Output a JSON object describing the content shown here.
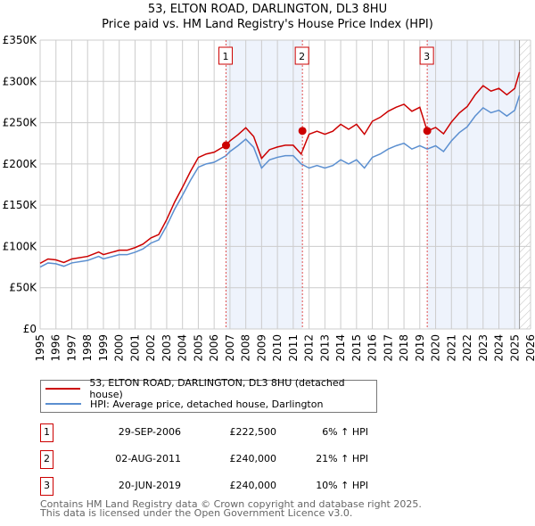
{
  "title": "53, ELTON ROAD, DARLINGTON, DL3 8HU",
  "subtitle": "Price paid vs. HM Land Registry's House Price Index (HPI)",
  "chart_data": {
    "type": "line",
    "ylim": [
      0,
      350000
    ],
    "xlim": [
      1995,
      2026
    ],
    "yticks": [
      {
        "v": 0,
        "l": "£0"
      },
      {
        "v": 50000,
        "l": "£50K"
      },
      {
        "v": 100000,
        "l": "£100K"
      },
      {
        "v": 150000,
        "l": "£150K"
      },
      {
        "v": 200000,
        "l": "£200K"
      },
      {
        "v": 250000,
        "l": "£250K"
      },
      {
        "v": 300000,
        "l": "£300K"
      },
      {
        "v": 350000,
        "l": "£350K"
      }
    ],
    "xticks": [
      "1995",
      "1996",
      "1997",
      "1998",
      "1999",
      "2000",
      "2001",
      "2002",
      "2003",
      "2004",
      "2005",
      "2006",
      "2007",
      "2008",
      "2009",
      "2010",
      "2011",
      "2012",
      "2013",
      "2014",
      "2015",
      "2016",
      "2017",
      "2018",
      "2019",
      "2020",
      "2021",
      "2022",
      "2023",
      "2024",
      "2025",
      "2026"
    ],
    "hpi_series": {
      "name": "HPI: Average price, detached house, Darlington",
      "color": "#5b8fd0",
      "x": [
        1995,
        1995.5,
        1996,
        1996.5,
        1997,
        1998,
        1998.7,
        1999,
        2000,
        2000.5,
        2001,
        2001.5,
        2002,
        2002.5,
        2003,
        2003.5,
        2004,
        2004.5,
        2005,
        2005.5,
        2006,
        2006.75,
        2007,
        2007.5,
        2008,
        2008.5,
        2009,
        2009.5,
        2010,
        2010.5,
        2011,
        2011.5,
        2012,
        2012.5,
        2013,
        2013.5,
        2014,
        2014.5,
        2015,
        2015.5,
        2016,
        2016.5,
        2017,
        2017.5,
        2018,
        2018.5,
        2019,
        2019.47,
        2020,
        2020.5,
        2021,
        2021.5,
        2022,
        2022.5,
        2023,
        2023.5,
        2024,
        2024.5,
        2025,
        2025.3
      ],
      "y": [
        75,
        80,
        79,
        76,
        80,
        83,
        88,
        85,
        90,
        90,
        93,
        97,
        104,
        108,
        125,
        145,
        162,
        180,
        196,
        200,
        202,
        210,
        215,
        222,
        230,
        220,
        195,
        205,
        208,
        210,
        210,
        200,
        195,
        198,
        195,
        198,
        205,
        200,
        205,
        195,
        208,
        212,
        218,
        222,
        225,
        218,
        222,
        218,
        222,
        215,
        228,
        238,
        245,
        258,
        268,
        262,
        265,
        258,
        265,
        283
      ]
    },
    "price_series": {
      "name": "53, ELTON ROAD, DARLINGTON, DL3 8HU (detached house)",
      "color": "#cc0000"
    },
    "sales": [
      {
        "n": "1",
        "date": "29-SEP-2006",
        "x": 2006.75,
        "price": "£222,500",
        "value": 222500,
        "hpi": "6% ↑ HPI",
        "ratio": 1.06
      },
      {
        "n": "2",
        "date": "02-AUG-2011",
        "x": 2011.58,
        "price": "£240,000",
        "value": 240000,
        "hpi": "21% ↑ HPI",
        "ratio": 1.21
      },
      {
        "n": "3",
        "date": "20-JUN-2019",
        "x": 2019.47,
        "price": "£240,000",
        "value": 240000,
        "hpi": "10% ↑ HPI",
        "ratio": 1.1
      }
    ],
    "data_end": 2025.3
  },
  "legend": {
    "price": "53, ELTON ROAD, DARLINGTON, DL3 8HU (detached house)",
    "hpi": "HPI: Average price, detached house, Darlington"
  },
  "footer": [
    "Contains HM Land Registry data © Crown copyright and database right 2025.",
    "This data is licensed under the Open Government Licence v3.0."
  ]
}
